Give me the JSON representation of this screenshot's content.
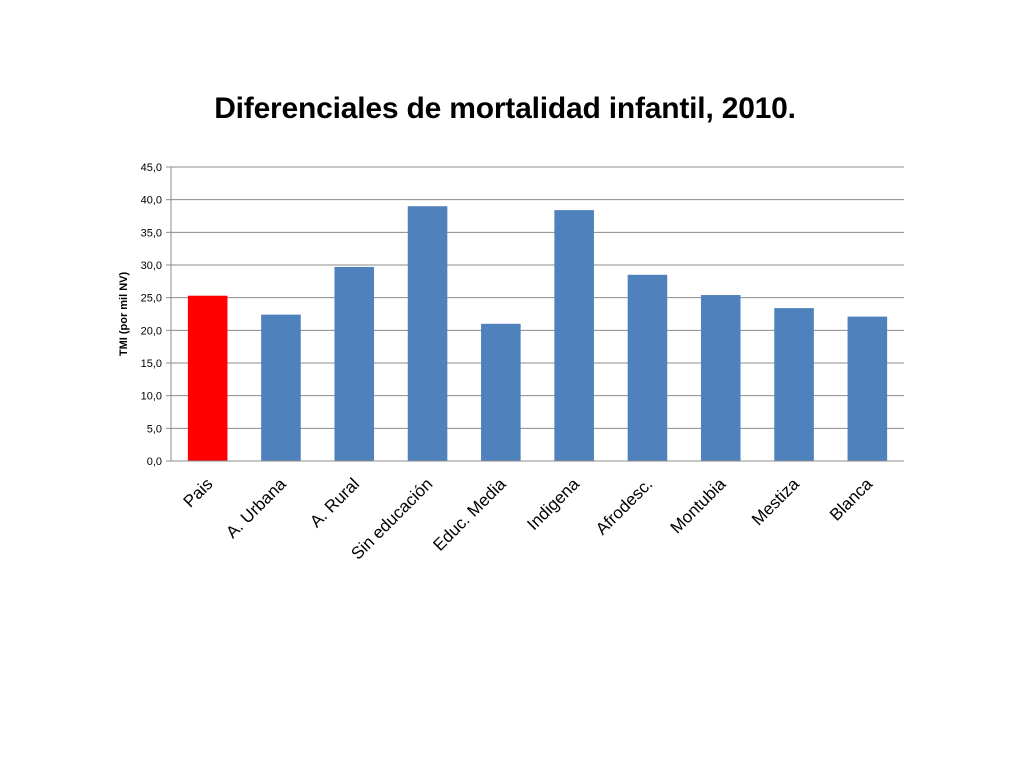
{
  "chart_data": {
    "type": "bar",
    "title": "Diferenciales de mortalidad infantil, 2010.",
    "xlabel": "",
    "ylabel": "TMI (por mil NV)",
    "ylim": [
      0,
      45
    ],
    "yticks": [
      "0,0",
      "5,0",
      "10,0",
      "15,0",
      "20,0",
      "25,0",
      "30,0",
      "35,0",
      "40,0",
      "45,0"
    ],
    "grid": true,
    "categories": [
      "Pais",
      "A. Urbana",
      "A. Rural",
      "Sin educación",
      "Educ. Media",
      "Indigena",
      "Afrodesc.",
      "Montubia",
      "Mestiza",
      "Blanca"
    ],
    "values": [
      25.3,
      22.4,
      29.7,
      39.0,
      21.0,
      38.4,
      28.5,
      25.4,
      23.4,
      22.1
    ],
    "bar_colors": [
      "#FF0000",
      "#4F81BD",
      "#4F81BD",
      "#4F81BD",
      "#4F81BD",
      "#4F81BD",
      "#4F81BD",
      "#4F81BD",
      "#4F81BD",
      "#4F81BD"
    ]
  }
}
